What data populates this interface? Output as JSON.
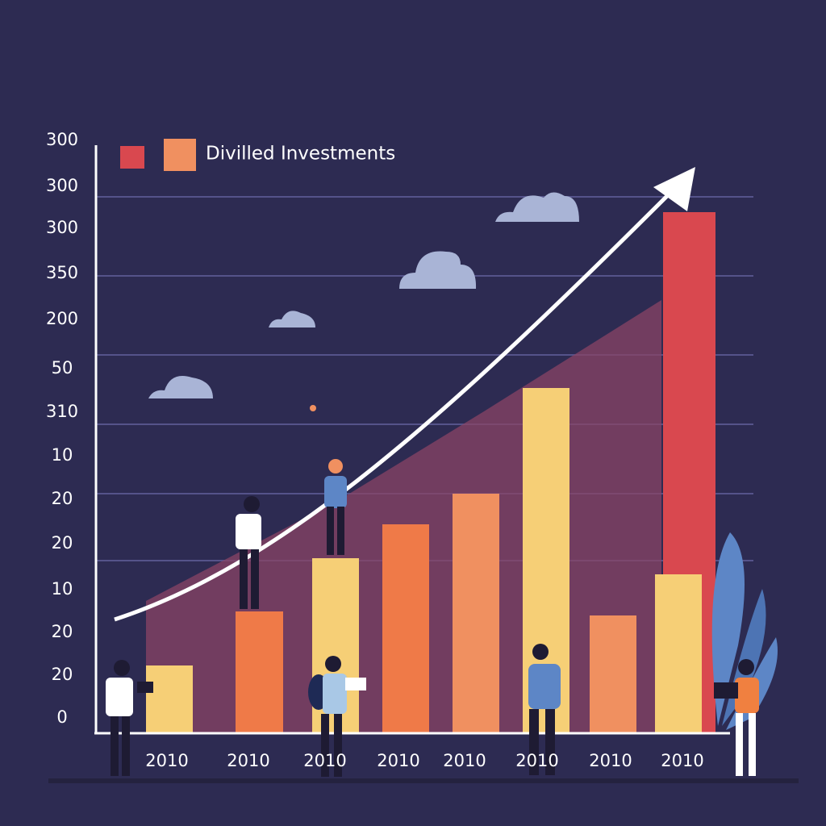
{
  "legend": {
    "label": "Divilled Investments"
  },
  "y_axis_labels": [
    "300",
    "300",
    "300",
    "350",
    "200",
    "50",
    "310",
    "10",
    "20",
    "20",
    "10",
    "20",
    "20",
    "0"
  ],
  "x_axis_labels": [
    "2010",
    "2010",
    "2010",
    "2010",
    "2010",
    "2010",
    "2010",
    "2010"
  ]
}
